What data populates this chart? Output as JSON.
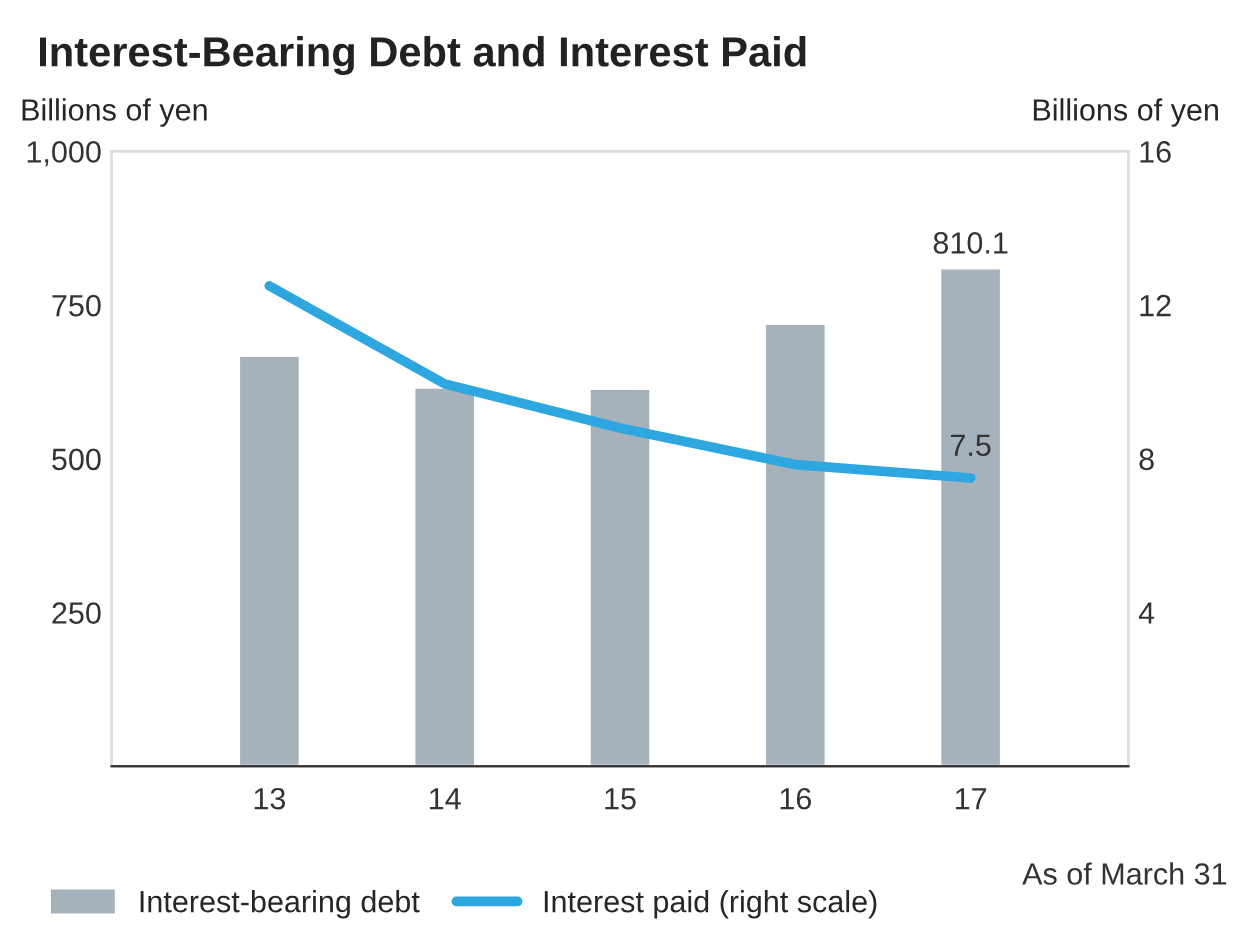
{
  "chart_data": {
    "type": "bar",
    "title": "Interest-Bearing Debt and Interest Paid",
    "ylabel": "Billions of yen",
    "y2label": "Billions of yen",
    "categories": [
      "13",
      "14",
      "15",
      "16",
      "17"
    ],
    "series": [
      {
        "name": "Interest-bearing debt",
        "color": "#a6b2bb",
        "values": [
          668,
          616,
          614,
          720,
          810.1
        ],
        "value_labels": [
          null,
          null,
          null,
          null,
          "810.1"
        ]
      },
      {
        "name": "Interest paid (right scale)",
        "type": "line",
        "axis": "y2",
        "color": "#2ea7e0",
        "values": [
          12.5,
          9.95,
          8.8,
          7.85,
          7.5
        ],
        "value_labels": [
          null,
          null,
          null,
          null,
          "7.5"
        ]
      }
    ],
    "ylim": [
      0,
      1000
    ],
    "yticks": [
      {
        "value": 250,
        "label": "250"
      },
      {
        "value": 500,
        "label": "500"
      },
      {
        "value": 750,
        "label": "750"
      },
      {
        "value": 1000,
        "label": "1,000"
      }
    ],
    "y2lim": [
      0,
      16
    ],
    "y2ticks": [
      4,
      8,
      12,
      16
    ],
    "annotations": [
      "As of March 31"
    ],
    "legend": "bottom left",
    "grid": false,
    "marker": "none",
    "line_style": "solid"
  }
}
